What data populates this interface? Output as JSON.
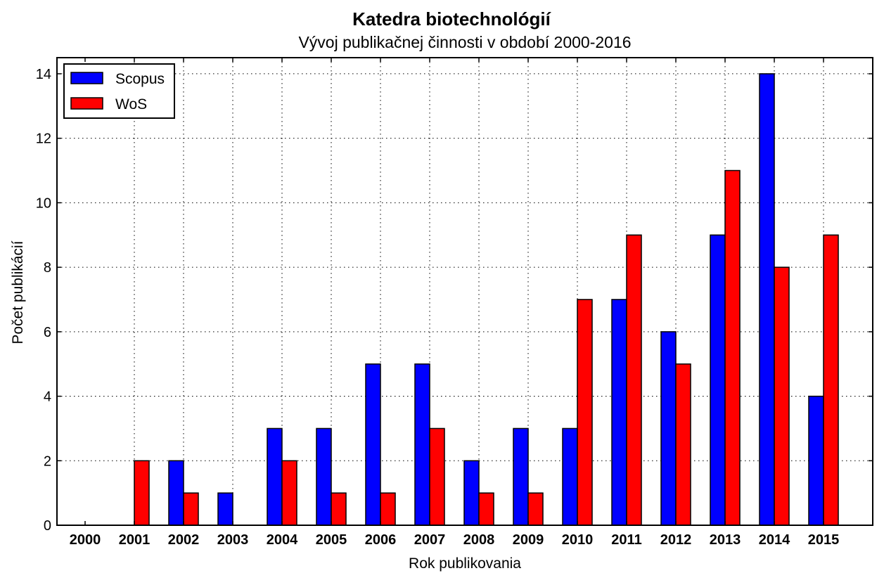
{
  "chart_data": {
    "type": "bar",
    "title": "Katedra biotechnológií",
    "subtitle": "Vývoj publikačnej činnosti v období 2000-2016",
    "xlabel": "Rok publikovania",
    "ylabel": "Počet publikácií",
    "categories": [
      "2000",
      "2001",
      "2002",
      "2003",
      "2004",
      "2005",
      "2006",
      "2007",
      "2008",
      "2009",
      "2010",
      "2011",
      "2012",
      "2013",
      "2014",
      "2015"
    ],
    "series": [
      {
        "name": "Scopus",
        "color": "#0000ff",
        "values": [
          0,
          0,
          2,
          1,
          3,
          3,
          5,
          5,
          2,
          3,
          3,
          7,
          6,
          9,
          14,
          4
        ]
      },
      {
        "name": "WoS",
        "color": "#ff0000",
        "values": [
          0,
          2,
          1,
          0,
          2,
          1,
          1,
          3,
          1,
          1,
          7,
          9,
          5,
          11,
          8,
          9
        ]
      }
    ],
    "ylim": [
      0,
      14.5
    ],
    "yticks": [
      "0",
      "2",
      "4",
      "6",
      "8",
      "10",
      "12",
      "14"
    ],
    "grid": true,
    "legend_position": "top-left"
  }
}
